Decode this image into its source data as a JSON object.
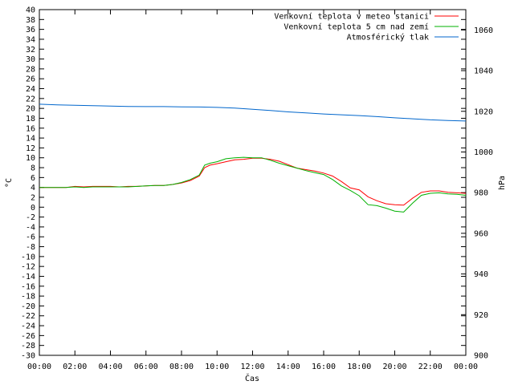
{
  "chart_data": {
    "type": "line",
    "xlabel": "Čas",
    "ylabel_left": "°C",
    "ylabel_right": "hPa",
    "ylim_left": [
      -30,
      40
    ],
    "ylim_right": [
      900,
      1070
    ],
    "xlim": [
      0,
      24
    ],
    "grid": false,
    "legend_placement": "top-right",
    "x_ticks": [
      "00:00",
      "02:00",
      "04:00",
      "06:00",
      "08:00",
      "10:00",
      "12:00",
      "14:00",
      "16:00",
      "18:00",
      "20:00",
      "22:00",
      "00:00"
    ],
    "y_ticks_left": [
      40,
      38,
      36,
      34,
      32,
      30,
      28,
      26,
      24,
      22,
      20,
      18,
      16,
      14,
      12,
      10,
      8,
      6,
      4,
      2,
      0,
      -2,
      -4,
      -6,
      -8,
      -10,
      -12,
      -14,
      -16,
      -18,
      -20,
      -22,
      -24,
      -26,
      -28,
      -30
    ],
    "y_ticks_right": [
      1060,
      1040,
      1020,
      1000,
      980,
      960,
      940,
      920,
      900
    ],
    "series": [
      {
        "name": "Venkovní teplota v meteo stanici",
        "axis": "left",
        "color": "#ff0000",
        "points": [
          [
            0,
            4.0
          ],
          [
            0.5,
            4.0
          ],
          [
            1,
            4.0
          ],
          [
            1.5,
            4.0
          ],
          [
            2,
            4.2
          ],
          [
            2.5,
            4.1
          ],
          [
            3,
            4.2
          ],
          [
            3.5,
            4.2
          ],
          [
            4,
            4.2
          ],
          [
            4.5,
            4.1
          ],
          [
            5,
            4.2
          ],
          [
            5.5,
            4.2
          ],
          [
            6,
            4.3
          ],
          [
            6.5,
            4.4
          ],
          [
            7,
            4.4
          ],
          [
            7.5,
            4.6
          ],
          [
            8,
            4.9
          ],
          [
            8.5,
            5.4
          ],
          [
            9,
            6.3
          ],
          [
            9.3,
            8.0
          ],
          [
            9.6,
            8.5
          ],
          [
            10,
            8.8
          ],
          [
            10.5,
            9.2
          ],
          [
            11,
            9.6
          ],
          [
            11.5,
            9.7
          ],
          [
            12,
            9.9
          ],
          [
            12.5,
            9.9
          ],
          [
            13,
            9.7
          ],
          [
            13.5,
            9.3
          ],
          [
            14,
            8.6
          ],
          [
            14.5,
            7.9
          ],
          [
            15,
            7.6
          ],
          [
            15.5,
            7.3
          ],
          [
            16,
            6.9
          ],
          [
            16.5,
            6.3
          ],
          [
            17,
            5.2
          ],
          [
            17.5,
            3.9
          ],
          [
            18,
            3.5
          ],
          [
            18.5,
            2.1
          ],
          [
            19,
            1.3
          ],
          [
            19.5,
            0.7
          ],
          [
            20,
            0.5
          ],
          [
            20.5,
            0.4
          ],
          [
            21,
            1.8
          ],
          [
            21.5,
            3.0
          ],
          [
            22,
            3.3
          ],
          [
            22.5,
            3.3
          ],
          [
            23,
            3.0
          ],
          [
            23.5,
            2.9
          ],
          [
            24,
            2.8
          ]
        ]
      },
      {
        "name": "Venkovní teplota 5 cm nad zemí",
        "axis": "left",
        "color": "#00b000",
        "points": [
          [
            0,
            4.0
          ],
          [
            0.5,
            4.0
          ],
          [
            1,
            4.0
          ],
          [
            1.5,
            4.0
          ],
          [
            2,
            4.1
          ],
          [
            2.5,
            4.0
          ],
          [
            3,
            4.1
          ],
          [
            3.5,
            4.1
          ],
          [
            4,
            4.1
          ],
          [
            4.5,
            4.1
          ],
          [
            5,
            4.1
          ],
          [
            5.5,
            4.2
          ],
          [
            6,
            4.3
          ],
          [
            6.5,
            4.4
          ],
          [
            7,
            4.4
          ],
          [
            7.5,
            4.6
          ],
          [
            8,
            5.0
          ],
          [
            8.5,
            5.6
          ],
          [
            9,
            6.5
          ],
          [
            9.3,
            8.5
          ],
          [
            9.6,
            8.9
          ],
          [
            10,
            9.2
          ],
          [
            10.5,
            9.8
          ],
          [
            11,
            10.0
          ],
          [
            11.5,
            10.1
          ],
          [
            12,
            10.0
          ],
          [
            12.5,
            10.0
          ],
          [
            13,
            9.5
          ],
          [
            13.5,
            8.9
          ],
          [
            14,
            8.4
          ],
          [
            14.5,
            7.9
          ],
          [
            15,
            7.4
          ],
          [
            15.5,
            7.0
          ],
          [
            16,
            6.6
          ],
          [
            16.5,
            5.6
          ],
          [
            17,
            4.3
          ],
          [
            17.5,
            3.4
          ],
          [
            18,
            2.3
          ],
          [
            18.5,
            0.5
          ],
          [
            19,
            0.3
          ],
          [
            19.5,
            -0.2
          ],
          [
            20,
            -0.8
          ],
          [
            20.5,
            -1.0
          ],
          [
            21,
            0.8
          ],
          [
            21.5,
            2.4
          ],
          [
            22,
            2.8
          ],
          [
            22.5,
            2.9
          ],
          [
            23,
            2.7
          ],
          [
            23.5,
            2.6
          ],
          [
            24,
            2.4
          ]
        ]
      },
      {
        "name": "Atmosférický tlak",
        "axis": "right",
        "color": "#0066cc",
        "points": [
          [
            0,
            1023.5
          ],
          [
            1,
            1023.2
          ],
          [
            2,
            1023.0
          ],
          [
            3,
            1022.8
          ],
          [
            4,
            1022.6
          ],
          [
            5,
            1022.4
          ],
          [
            6,
            1022.3
          ],
          [
            7,
            1022.3
          ],
          [
            8,
            1022.2
          ],
          [
            9,
            1022.1
          ],
          [
            10,
            1021.9
          ],
          [
            11,
            1021.6
          ],
          [
            12,
            1021.0
          ],
          [
            13,
            1020.4
          ],
          [
            14,
            1019.7
          ],
          [
            15,
            1019.2
          ],
          [
            16,
            1018.7
          ],
          [
            17,
            1018.3
          ],
          [
            18,
            1017.9
          ],
          [
            19,
            1017.4
          ],
          [
            20,
            1016.8
          ],
          [
            21,
            1016.3
          ],
          [
            22,
            1015.8
          ],
          [
            23,
            1015.5
          ],
          [
            24,
            1015.2
          ]
        ]
      }
    ]
  }
}
